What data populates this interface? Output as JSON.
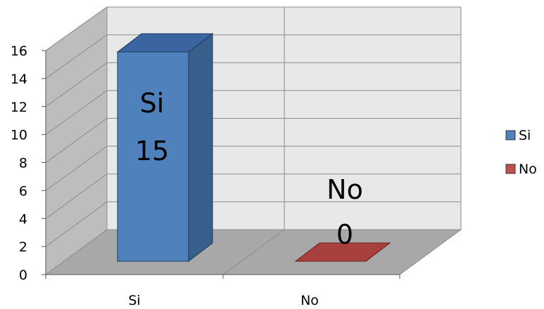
{
  "chart_data": {
    "type": "bar",
    "three_d": true,
    "categories": [
      "Si",
      "No"
    ],
    "series": [
      {
        "name": "Si",
        "values": [
          15,
          null
        ],
        "color": "#4f81bd",
        "side_color": "#365f8c",
        "top_color": "#3a65a0"
      },
      {
        "name": "No",
        "values": [
          null,
          0
        ],
        "color": "#c0504d",
        "side_color": "#8b2f2c",
        "top_color": "#a8403d"
      }
    ],
    "data_labels": [
      {
        "series": "Si",
        "category": "Si",
        "text_name": "Si",
        "text_value": "15"
      },
      {
        "series": "No",
        "category": "No",
        "text_name": "No",
        "text_value": "0"
      }
    ],
    "y_ticks": [
      "0",
      "2",
      "4",
      "6",
      "8",
      "10",
      "12",
      "14",
      "16"
    ],
    "ylim": [
      0,
      16
    ],
    "grid": true,
    "legend_position": "right",
    "title": "",
    "xlabel": "",
    "ylabel": ""
  }
}
